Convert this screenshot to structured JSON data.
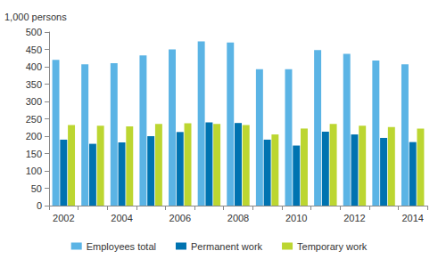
{
  "chart_data": {
    "type": "bar",
    "y_label": "1,000 persons",
    "categories": [
      "2002",
      null,
      "2004",
      null,
      "2006",
      null,
      "2008",
      null,
      "2010",
      null,
      "2012",
      null,
      "2014"
    ],
    "series": [
      {
        "name": "Employees total",
        "color": "#5bb4e5",
        "values": [
          420,
          407,
          410,
          433,
          450,
          473,
          470,
          393,
          393,
          448,
          437,
          418,
          407
        ]
      },
      {
        "name": "Permanent work",
        "color": "#0073b0",
        "values": [
          190,
          178,
          182,
          200,
          212,
          240,
          238,
          190,
          173,
          213,
          205,
          195,
          183
        ]
      },
      {
        "name": "Temporary work",
        "color": "#bcd631",
        "values": [
          232,
          230,
          228,
          235,
          237,
          235,
          232,
          205,
          222,
          235,
          230,
          226,
          222
        ]
      }
    ],
    "ylim": [
      0,
      500
    ],
    "yticks": [
      0,
      50,
      100,
      150,
      200,
      250,
      300,
      350,
      400,
      450,
      500
    ],
    "grid": false,
    "legend": "bottom"
  }
}
